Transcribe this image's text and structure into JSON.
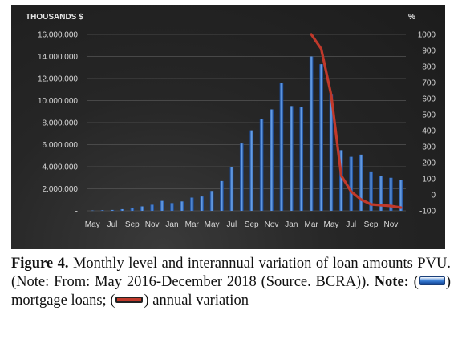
{
  "caption": {
    "figure_label": "Figure 4.",
    "text": " Monthly level and interannual variation of loan amounts PVU. (Note: From: May 2016-December 2018 (Source. BCRA)). ",
    "note_label": "Note:",
    "open_paren_1": " (",
    "series1_text": ") mortgage loans; (",
    "series2_text": ") annual variation"
  },
  "chart_data": {
    "type": "bar",
    "left_axis_unit": "THOUSANDS  $",
    "right_axis_unit": "%",
    "left_ylim": [
      0,
      16000000
    ],
    "left_ticks": [
      "-",
      "2.000.000",
      "4.000.000",
      "6.000.000",
      "8.000.000",
      "10.000.000",
      "12.000.000",
      "14.000.000",
      "16.000.000"
    ],
    "right_ylim": [
      -100,
      1000
    ],
    "right_ticks": [
      "-100",
      "0",
      "100",
      "200",
      "300",
      "400",
      "500",
      "600",
      "700",
      "800",
      "900",
      "1000"
    ],
    "x_tick_labels": [
      "May",
      "Jul",
      "Sep",
      "Nov",
      "Jan",
      "Mar",
      "May",
      "Jul",
      "Sep",
      "Nov",
      "Jan",
      "Mar",
      "May",
      "Jul",
      "Sep",
      "Nov"
    ],
    "series": [
      {
        "kind": "bar",
        "axis": "left",
        "color": "#2e6fd1",
        "values": [
          30000,
          50000,
          80000,
          150000,
          250000,
          400000,
          550000,
          900000,
          700000,
          850000,
          1200000,
          1300000,
          1800000,
          2700000,
          4000000,
          6100000,
          7300000,
          8300000,
          9200000,
          11600000,
          9500000,
          9400000,
          14000000,
          13300000,
          10600000,
          5500000,
          4900000,
          5100000,
          3500000,
          3200000,
          3000000,
          2800000
        ]
      },
      {
        "kind": "line",
        "axis": "right",
        "color": "#c0392b",
        "start_index": 22,
        "values": [
          1000,
          910,
          620,
          120,
          20,
          -30,
          -60,
          -65,
          -70,
          -80
        ]
      }
    ]
  }
}
